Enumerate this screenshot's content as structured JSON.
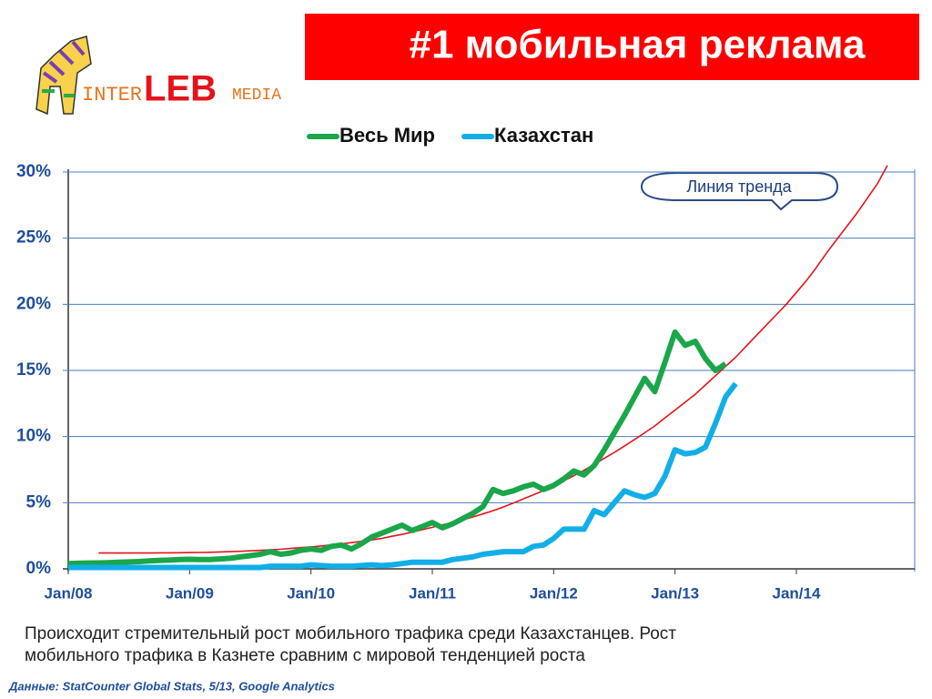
{
  "logo": {
    "parts": [
      "INTER",
      "LEB",
      "MEDIA"
    ]
  },
  "chart_data": {
    "type": "line",
    "title": "#1 мобильная реклама",
    "categories": [
      "Jan/08",
      null,
      null,
      null,
      null,
      null,
      null,
      null,
      null,
      null,
      null,
      null,
      "Jan/09",
      null,
      null,
      null,
      null,
      null,
      null,
      null,
      null,
      null,
      null,
      null,
      "Jan/10",
      null,
      null,
      null,
      null,
      null,
      null,
      null,
      null,
      null,
      null,
      null,
      "Jan/11",
      null,
      null,
      null,
      null,
      null,
      null,
      null,
      null,
      null,
      null,
      null,
      "Jan/12",
      null,
      null,
      null,
      null,
      null,
      null,
      null,
      null,
      null,
      null,
      null,
      "Jan/13",
      null,
      null,
      null,
      null,
      null,
      null,
      null,
      null,
      null,
      null,
      null,
      "Jan/14",
      null,
      null,
      null,
      null,
      null,
      null,
      null,
      null,
      null,
      null,
      null
    ],
    "series": [
      {
        "name": "Весь Мир",
        "color": "#1aa64a",
        "width": 6,
        "values": [
          0.4,
          0.42,
          0.44,
          0.45,
          0.47,
          0.5,
          0.52,
          0.55,
          0.6,
          0.63,
          0.66,
          0.7,
          0.72,
          0.7,
          0.7,
          0.75,
          0.8,
          0.9,
          1.0,
          1.1,
          1.3,
          1.1,
          1.2,
          1.4,
          1.5,
          1.4,
          1.7,
          1.8,
          1.5,
          1.9,
          2.4,
          2.7,
          3.0,
          3.3,
          2.9,
          3.2,
          3.5,
          3.1,
          3.4,
          3.8,
          4.2,
          4.7,
          6.0,
          5.7,
          5.9,
          6.2,
          6.4,
          6.0,
          6.3,
          6.8,
          7.4,
          7.1,
          7.8,
          9.0,
          10.3,
          11.6,
          13.0,
          14.4,
          13.4,
          15.6,
          17.9,
          16.9,
          17.2,
          15.9,
          15.0,
          15.5,
          null,
          null,
          null,
          null,
          null,
          null,
          null,
          null,
          null,
          null,
          null,
          null,
          null,
          null,
          null,
          null,
          null,
          null
        ]
      },
      {
        "name": "Казахстан",
        "color": "#12aee8",
        "width": 6,
        "values": [
          0.1,
          0.1,
          0.1,
          0.1,
          0.1,
          0.1,
          0.1,
          0.1,
          0.1,
          0.1,
          0.1,
          0.1,
          0.1,
          0.1,
          0.1,
          0.1,
          0.1,
          0.1,
          0.1,
          0.1,
          0.2,
          0.2,
          0.2,
          0.2,
          0.3,
          0.25,
          0.2,
          0.2,
          0.2,
          0.25,
          0.3,
          0.25,
          0.3,
          0.4,
          0.5,
          0.5,
          0.5,
          0.5,
          0.7,
          0.8,
          0.9,
          1.1,
          1.2,
          1.3,
          1.3,
          1.3,
          1.7,
          1.8,
          2.3,
          3.0,
          3.0,
          3.0,
          4.4,
          4.1,
          5.0,
          5.9,
          5.6,
          5.4,
          5.7,
          7.0,
          9.0,
          8.7,
          8.8,
          9.2,
          11.0,
          13.0,
          14.0,
          null,
          null,
          null,
          null,
          null,
          null,
          null,
          null,
          null,
          null,
          null,
          null,
          null,
          null,
          null,
          null,
          null
        ]
      },
      {
        "name": "Линия тренда",
        "color": "#e3141b",
        "width": 1.6,
        "values": [
          null,
          null,
          null,
          1.2,
          1.2,
          1.2,
          1.2,
          1.2,
          1.2,
          1.21,
          1.21,
          1.22,
          1.23,
          1.24,
          1.25,
          1.28,
          1.3,
          1.33,
          1.36,
          1.4,
          1.44,
          1.48,
          1.54,
          1.6,
          1.66,
          1.73,
          1.81,
          1.89,
          1.98,
          2.08,
          2.19,
          2.3,
          2.46,
          2.6,
          2.78,
          2.96,
          3.14,
          3.33,
          3.5,
          3.7,
          3.92,
          4.15,
          4.4,
          4.67,
          4.97,
          5.29,
          5.6,
          5.92,
          6.27,
          6.65,
          7.04,
          7.45,
          7.9,
          8.35,
          8.8,
          9.28,
          9.78,
          10.29,
          10.8,
          11.4,
          12.0,
          12.6,
          13.2,
          13.9,
          14.6,
          15.3,
          16.0,
          16.8,
          17.6,
          18.4,
          19.2,
          20.0,
          20.9,
          21.8,
          22.8,
          23.9,
          24.9,
          25.9,
          26.9,
          28.0,
          29.1,
          30.5,
          null,
          null
        ]
      }
    ],
    "legend_series": [
      0,
      1
    ],
    "annotation_series": 2,
    "ylim": [
      0,
      30
    ],
    "yticks": [
      {
        "value": 0,
        "label": "0%"
      },
      {
        "value": 5,
        "label": "5%"
      },
      {
        "value": 10,
        "label": "10%"
      },
      {
        "value": 15,
        "label": "15%"
      },
      {
        "value": 20,
        "label": "20%"
      },
      {
        "value": 25,
        "label": "25%"
      },
      {
        "value": 30,
        "label": "30%"
      }
    ],
    "grid": true,
    "caption": [
      "Происходит стремительный рост мобильного трафика среди Казахстанцев. Рост",
      "мобильного трафика в Казнете сравним с мировой тенденцией  роста"
    ],
    "source": "Данные: StatCounter Global Stats, 5/13, Google Analytics"
  }
}
